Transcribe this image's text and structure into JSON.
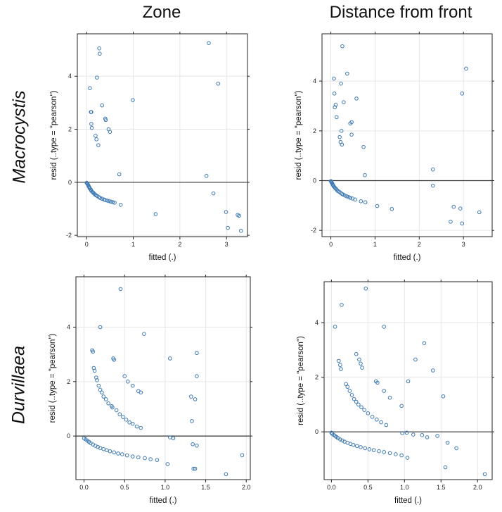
{
  "column_titles": [
    "Zone",
    "Distance from front"
  ],
  "row_titles": [
    "Macrocystis",
    "Durvillaea"
  ],
  "chart_data": [
    {
      "type": "scatter",
      "title": "",
      "xlabel": "fitted (.)",
      "ylabel": "resid (..type = \"pearson\")",
      "xlim": [
        -0.2,
        3.45
      ],
      "ylim": [
        -2.05,
        5.6
      ],
      "xticks": [
        0,
        1,
        2,
        3
      ],
      "yticks": [
        -2,
        0,
        2,
        4
      ],
      "reference_line": 0,
      "grid": true,
      "marker_color": "#3c78b4",
      "points": [
        [
          0.27,
          5.05
        ],
        [
          0.28,
          4.85
        ],
        [
          0.22,
          3.95
        ],
        [
          0.07,
          3.55
        ],
        [
          0.09,
          2.65
        ],
        [
          0.1,
          2.65
        ],
        [
          0.33,
          2.9
        ],
        [
          0.1,
          2.2
        ],
        [
          0.11,
          2.05
        ],
        [
          0.4,
          2.4
        ],
        [
          0.41,
          2.35
        ],
        [
          0.47,
          2.0
        ],
        [
          0.5,
          1.9
        ],
        [
          0.19,
          1.75
        ],
        [
          0.21,
          1.62
        ],
        [
          0.25,
          1.4
        ],
        [
          0.99,
          3.1
        ],
        [
          0.7,
          0.3
        ],
        [
          2.62,
          5.25
        ],
        [
          2.82,
          3.72
        ],
        [
          2.57,
          0.24
        ],
        [
          2.72,
          -0.42
        ],
        [
          1.48,
          -1.2
        ],
        [
          2.99,
          -1.12
        ],
        [
          3.03,
          -1.72
        ],
        [
          3.24,
          -1.23
        ],
        [
          3.27,
          -1.26
        ],
        [
          3.31,
          -1.83
        ],
        [
          0.0,
          -0.02
        ],
        [
          0.01,
          -0.04
        ],
        [
          0.02,
          -0.07
        ],
        [
          0.03,
          -0.1
        ],
        [
          0.04,
          -0.13
        ],
        [
          0.05,
          -0.17
        ],
        [
          0.06,
          -0.2
        ],
        [
          0.07,
          -0.24
        ],
        [
          0.09,
          -0.28
        ],
        [
          0.1,
          -0.32
        ],
        [
          0.12,
          -0.36
        ],
        [
          0.14,
          -0.39
        ],
        [
          0.16,
          -0.43
        ],
        [
          0.18,
          -0.46
        ],
        [
          0.2,
          -0.49
        ],
        [
          0.23,
          -0.52
        ],
        [
          0.26,
          -0.56
        ],
        [
          0.29,
          -0.59
        ],
        [
          0.33,
          -0.62
        ],
        [
          0.37,
          -0.65
        ],
        [
          0.4,
          -0.67
        ],
        [
          0.44,
          -0.69
        ],
        [
          0.48,
          -0.71
        ],
        [
          0.52,
          -0.73
        ],
        [
          0.56,
          -0.75
        ],
        [
          0.6,
          -0.77
        ],
        [
          0.73,
          -0.85
        ]
      ]
    },
    {
      "type": "scatter",
      "title": "",
      "xlabel": "fitted (.)",
      "ylabel": "resid (..type = \"pearson\")",
      "xlim": [
        -0.2,
        3.65
      ],
      "ylim": [
        -2.25,
        5.9
      ],
      "xticks": [
        0,
        1,
        2,
        3
      ],
      "yticks": [
        -2,
        0,
        2,
        4
      ],
      "reference_line": 0,
      "grid": true,
      "marker_color": "#3c78b4",
      "points": [
        [
          0.26,
          5.4
        ],
        [
          0.37,
          4.3
        ],
        [
          0.07,
          4.1
        ],
        [
          0.23,
          3.9
        ],
        [
          0.08,
          3.5
        ],
        [
          0.11,
          3.05
        ],
        [
          0.09,
          2.95
        ],
        [
          0.29,
          3.15
        ],
        [
          0.58,
          3.3
        ],
        [
          0.47,
          2.35
        ],
        [
          0.44,
          2.3
        ],
        [
          0.13,
          2.55
        ],
        [
          0.24,
          2.0
        ],
        [
          0.47,
          1.85
        ],
        [
          0.2,
          1.75
        ],
        [
          0.22,
          1.55
        ],
        [
          0.25,
          1.45
        ],
        [
          0.74,
          1.35
        ],
        [
          0.77,
          0.22
        ],
        [
          2.31,
          0.45
        ],
        [
          2.31,
          -0.2
        ],
        [
          2.97,
          3.5
        ],
        [
          3.06,
          4.5
        ],
        [
          2.71,
          -1.65
        ],
        [
          2.78,
          -1.05
        ],
        [
          2.93,
          -1.12
        ],
        [
          2.97,
          -1.72
        ],
        [
          3.36,
          -1.27
        ],
        [
          1.05,
          -1.02
        ],
        [
          1.38,
          -1.14
        ],
        [
          0.0,
          -0.02
        ],
        [
          0.01,
          -0.05
        ],
        [
          0.02,
          -0.08
        ],
        [
          0.03,
          -0.11
        ],
        [
          0.04,
          -0.15
        ],
        [
          0.05,
          -0.18
        ],
        [
          0.06,
          -0.22
        ],
        [
          0.08,
          -0.26
        ],
        [
          0.1,
          -0.3
        ],
        [
          0.12,
          -0.34
        ],
        [
          0.14,
          -0.38
        ],
        [
          0.16,
          -0.42
        ],
        [
          0.19,
          -0.45
        ],
        [
          0.22,
          -0.49
        ],
        [
          0.25,
          -0.53
        ],
        [
          0.28,
          -0.56
        ],
        [
          0.32,
          -0.6
        ],
        [
          0.36,
          -0.63
        ],
        [
          0.4,
          -0.66
        ],
        [
          0.44,
          -0.69
        ],
        [
          0.49,
          -0.72
        ],
        [
          0.55,
          -0.76
        ],
        [
          0.68,
          -0.83
        ],
        [
          0.78,
          -0.87
        ]
      ]
    },
    {
      "type": "scatter",
      "title": "",
      "xlabel": "fitted (.)",
      "ylabel": "resid (..type = \"pearson\")",
      "xlim": [
        -0.1,
        2.05
      ],
      "ylim": [
        -1.6,
        5.85
      ],
      "xticks": [
        0.0,
        0.5,
        1.0,
        1.5,
        2.0
      ],
      "yticks": [
        0,
        2,
        4
      ],
      "reference_line": 0,
      "grid": true,
      "marker_color": "#3c78b4",
      "points": [
        [
          0.45,
          5.4
        ],
        [
          0.2,
          4.0
        ],
        [
          0.74,
          3.75
        ],
        [
          0.1,
          3.15
        ],
        [
          0.11,
          3.1
        ],
        [
          0.36,
          2.85
        ],
        [
          0.37,
          2.8
        ],
        [
          1.06,
          2.85
        ],
        [
          1.39,
          3.05
        ],
        [
          1.39,
          2.2
        ],
        [
          0.5,
          2.2
        ],
        [
          0.54,
          2.0
        ],
        [
          0.12,
          2.5
        ],
        [
          0.13,
          2.4
        ],
        [
          0.15,
          2.15
        ],
        [
          0.16,
          2.05
        ],
        [
          0.18,
          1.85
        ],
        [
          0.2,
          1.7
        ],
        [
          0.22,
          1.6
        ],
        [
          0.24,
          1.45
        ],
        [
          0.27,
          1.35
        ],
        [
          0.3,
          1.2
        ],
        [
          0.34,
          1.1
        ],
        [
          0.35,
          1.05
        ],
        [
          0.4,
          0.95
        ],
        [
          0.44,
          0.8
        ],
        [
          0.48,
          0.7
        ],
        [
          0.52,
          0.6
        ],
        [
          0.56,
          0.5
        ],
        [
          0.6,
          0.45
        ],
        [
          0.65,
          0.35
        ],
        [
          0.7,
          0.3
        ],
        [
          0.6,
          1.85
        ],
        [
          0.67,
          1.65
        ],
        [
          0.7,
          1.6
        ],
        [
          1.32,
          1.45
        ],
        [
          1.37,
          1.35
        ],
        [
          1.33,
          0.55
        ],
        [
          1.34,
          -0.3
        ],
        [
          1.39,
          -0.35
        ],
        [
          1.37,
          -1.2
        ],
        [
          1.06,
          -0.05
        ],
        [
          1.1,
          -0.08
        ],
        [
          1.35,
          -1.2
        ],
        [
          1.95,
          -0.7
        ],
        [
          1.75,
          -1.4
        ],
        [
          0.0,
          -0.08
        ],
        [
          0.02,
          -0.12
        ],
        [
          0.04,
          -0.17
        ],
        [
          0.06,
          -0.21
        ],
        [
          0.08,
          -0.26
        ],
        [
          0.11,
          -0.31
        ],
        [
          0.14,
          -0.36
        ],
        [
          0.17,
          -0.4
        ],
        [
          0.2,
          -0.44
        ],
        [
          0.24,
          -0.48
        ],
        [
          0.28,
          -0.52
        ],
        [
          0.32,
          -0.56
        ],
        [
          0.37,
          -0.6
        ],
        [
          0.42,
          -0.64
        ],
        [
          0.47,
          -0.67
        ],
        [
          0.53,
          -0.71
        ],
        [
          0.6,
          -0.75
        ],
        [
          0.67,
          -0.78
        ],
        [
          0.75,
          -0.81
        ],
        [
          0.82,
          -0.85
        ],
        [
          0.9,
          -0.88
        ],
        [
          1.03,
          -1.03
        ]
      ]
    },
    {
      "type": "scatter",
      "title": "",
      "xlabel": "fitted (.)",
      "ylabel": "resid (..type = \"pearson\")",
      "xlim": [
        -0.1,
        2.2
      ],
      "ylim": [
        -1.75,
        5.5
      ],
      "xticks": [
        0.0,
        0.5,
        1.0,
        1.5,
        2.0
      ],
      "yticks": [
        0,
        2,
        4
      ],
      "reference_line": 0,
      "grid": true,
      "marker_color": "#3c78b4",
      "points": [
        [
          0.47,
          5.25
        ],
        [
          0.14,
          4.65
        ],
        [
          0.05,
          3.85
        ],
        [
          0.72,
          3.85
        ],
        [
          1.27,
          3.25
        ],
        [
          0.34,
          2.85
        ],
        [
          0.38,
          2.65
        ],
        [
          0.4,
          2.5
        ],
        [
          0.42,
          2.35
        ],
        [
          1.15,
          2.65
        ],
        [
          1.39,
          2.25
        ],
        [
          0.1,
          2.6
        ],
        [
          0.12,
          2.45
        ],
        [
          0.13,
          2.3
        ],
        [
          1.05,
          1.85
        ],
        [
          1.53,
          1.3
        ],
        [
          0.2,
          1.75
        ],
        [
          0.22,
          1.65
        ],
        [
          0.25,
          1.5
        ],
        [
          0.28,
          1.35
        ],
        [
          0.31,
          1.2
        ],
        [
          0.34,
          1.1
        ],
        [
          0.37,
          1.0
        ],
        [
          0.41,
          0.9
        ],
        [
          0.45,
          0.8
        ],
        [
          0.5,
          0.68
        ],
        [
          0.56,
          0.55
        ],
        [
          0.62,
          0.45
        ],
        [
          0.68,
          0.35
        ],
        [
          0.75,
          0.25
        ],
        [
          0.61,
          1.85
        ],
        [
          0.63,
          1.8
        ],
        [
          0.72,
          1.5
        ],
        [
          0.8,
          1.25
        ],
        [
          0.96,
          0.95
        ],
        [
          1.45,
          -0.15
        ],
        [
          1.59,
          -0.4
        ],
        [
          1.71,
          -0.6
        ],
        [
          1.56,
          -1.3
        ],
        [
          2.1,
          -1.55
        ],
        [
          0.0,
          -0.03
        ],
        [
          0.01,
          -0.07
        ],
        [
          0.03,
          -0.11
        ],
        [
          0.05,
          -0.15
        ],
        [
          0.07,
          -0.19
        ],
        [
          0.09,
          -0.23
        ],
        [
          0.12,
          -0.28
        ],
        [
          0.15,
          -0.32
        ],
        [
          0.18,
          -0.36
        ],
        [
          0.22,
          -0.4
        ],
        [
          0.26,
          -0.44
        ],
        [
          0.3,
          -0.48
        ],
        [
          0.35,
          -0.52
        ],
        [
          0.4,
          -0.56
        ],
        [
          0.46,
          -0.6
        ],
        [
          0.52,
          -0.64
        ],
        [
          0.58,
          -0.67
        ],
        [
          0.65,
          -0.71
        ],
        [
          0.72,
          -0.74
        ],
        [
          0.8,
          -0.78
        ],
        [
          0.88,
          -0.82
        ],
        [
          0.96,
          -0.86
        ],
        [
          1.04,
          -0.95
        ],
        [
          0.97,
          -0.05
        ],
        [
          1.03,
          -0.03
        ],
        [
          1.12,
          -0.1
        ],
        [
          1.31,
          -0.2
        ],
        [
          1.24,
          -0.12
        ]
      ]
    }
  ]
}
